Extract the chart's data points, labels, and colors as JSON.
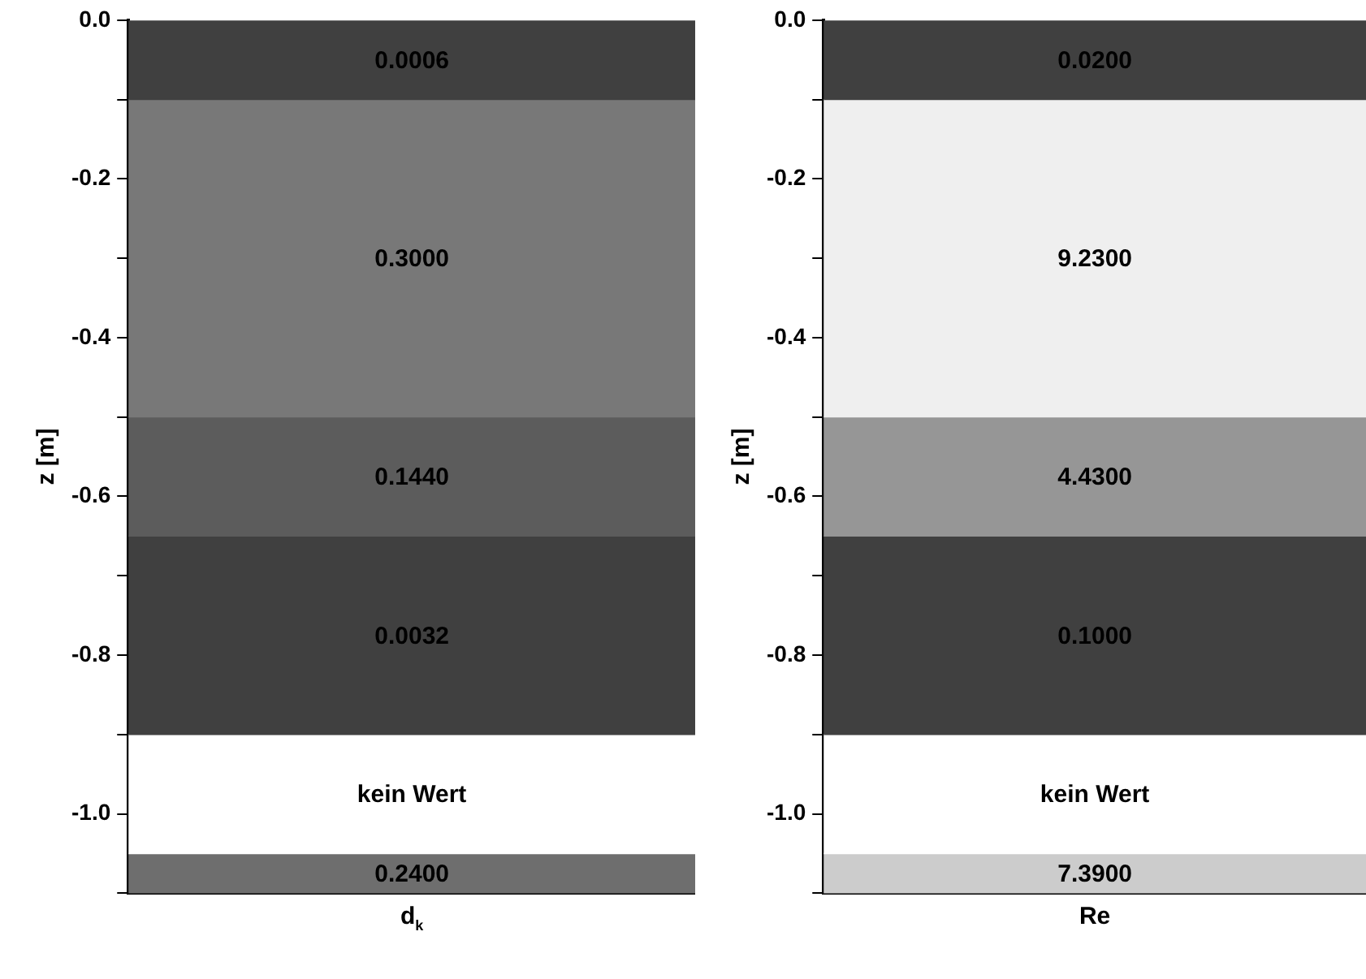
{
  "chart_data": [
    {
      "type": "bar",
      "stacked": true,
      "categories": [
        null
      ],
      "xlabel": "d$_{k}$",
      "ylabel": "z [m]",
      "ylim": [
        -1.1,
        0
      ],
      "yticks": [
        {
          "value": 0,
          "label": "0.0"
        },
        {
          "value": -0.1,
          "label": null
        },
        {
          "value": -0.2,
          "label": "-0.2"
        },
        {
          "value": -0.3,
          "label": null
        },
        {
          "value": -0.4,
          "label": "-0.4"
        },
        {
          "value": -0.5,
          "label": null
        },
        {
          "value": -0.6,
          "label": "-0.6"
        },
        {
          "value": -0.7,
          "label": null
        },
        {
          "value": -0.8,
          "label": "-0.8"
        },
        {
          "value": -0.9,
          "label": null
        },
        {
          "value": -1.0,
          "label": "-1.0"
        },
        {
          "value": -1.1,
          "label": null
        }
      ],
      "series": [
        {
          "color": "#404040",
          "values": [
            -0.1
          ]
        },
        {
          "color": "#787878",
          "values": [
            -0.4
          ]
        },
        {
          "color": "#5c5c5c",
          "values": [
            -0.15
          ]
        },
        {
          "color": "#404040",
          "values": [
            -0.25
          ]
        },
        {
          "color": "#ffffff",
          "values": [
            -0.15
          ]
        },
        {
          "color": "#6e6e6e",
          "values": [
            -0.05
          ]
        }
      ],
      "annotations": [
        "0.0006",
        "0.3000",
        "0.1440",
        "0.0032",
        "kein Wert",
        "0.2400"
      ],
      "grid": false,
      "legend": false
    },
    {
      "type": "bar",
      "stacked": true,
      "categories": [
        null
      ],
      "xlabel": "Re",
      "ylabel": "z [m]",
      "ylim": [
        -1.1,
        0
      ],
      "yticks": [
        {
          "value": 0,
          "label": "0.0"
        },
        {
          "value": -0.1,
          "label": null
        },
        {
          "value": -0.2,
          "label": "-0.2"
        },
        {
          "value": -0.3,
          "label": null
        },
        {
          "value": -0.4,
          "label": "-0.4"
        },
        {
          "value": -0.5,
          "label": null
        },
        {
          "value": -0.6,
          "label": "-0.6"
        },
        {
          "value": -0.7,
          "label": null
        },
        {
          "value": -0.8,
          "label": "-0.8"
        },
        {
          "value": -0.9,
          "label": null
        },
        {
          "value": -1.0,
          "label": "-1.0"
        },
        {
          "value": -1.1,
          "label": null
        }
      ],
      "series": [
        {
          "color": "#404040",
          "values": [
            -0.1
          ]
        },
        {
          "color": "#efefef",
          "values": [
            -0.4
          ]
        },
        {
          "color": "#969696",
          "values": [
            -0.15
          ]
        },
        {
          "color": "#404040",
          "values": [
            -0.25
          ]
        },
        {
          "color": "#ffffff",
          "values": [
            -0.15
          ]
        },
        {
          "color": "#cccccc",
          "values": [
            -0.05
          ]
        }
      ],
      "annotations": [
        "0.0200",
        "9.2300",
        "4.4300",
        "0.1000",
        "kein Wert",
        "7.3900"
      ],
      "grid": false,
      "legend": false
    }
  ]
}
